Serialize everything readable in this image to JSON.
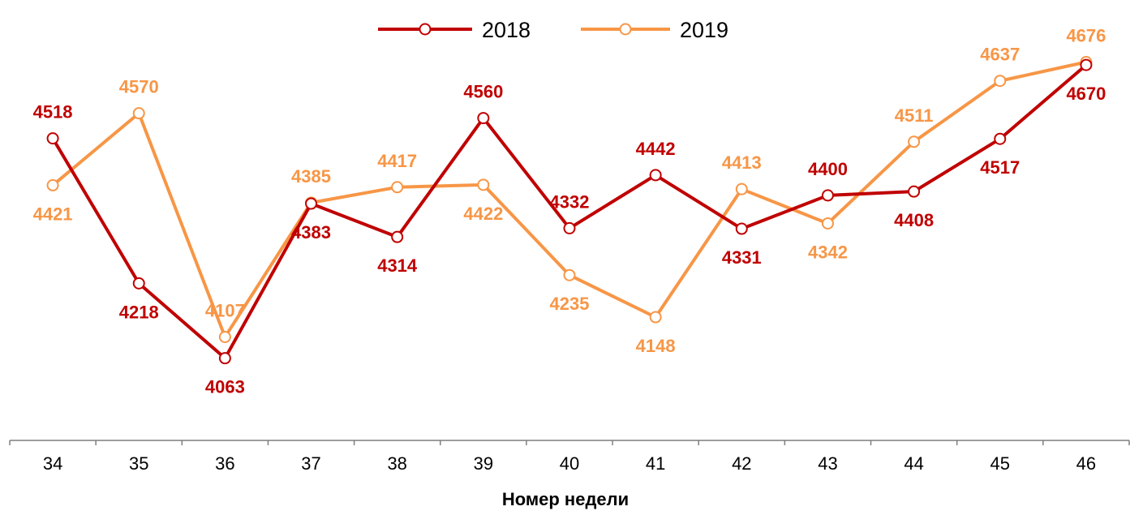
{
  "chart_data": {
    "type": "line",
    "title": "",
    "xlabel": "Номер недели",
    "ylabel": "",
    "categories": [
      "34",
      "35",
      "36",
      "37",
      "38",
      "39",
      "40",
      "41",
      "42",
      "43",
      "44",
      "45",
      "46"
    ],
    "ylim": [
      3900,
      4730
    ],
    "grid": false,
    "legend": "top-center",
    "series": [
      {
        "name": "2018",
        "color": "#C00000",
        "values": [
          4518,
          4218,
          4063,
          4383,
          4314,
          4560,
          4332,
          4442,
          4331,
          4400,
          4408,
          4517,
          4670
        ],
        "label_positions": [
          "above",
          "below",
          "below",
          "below",
          "below",
          "above",
          "above",
          "above",
          "below",
          "above",
          "below",
          "below",
          "below"
        ]
      },
      {
        "name": "2019",
        "color": "#F79646",
        "values": [
          4421,
          4570,
          4107,
          4385,
          4417,
          4422,
          4235,
          4148,
          4413,
          4342,
          4511,
          4637,
          4676
        ],
        "label_positions": [
          "below",
          "above",
          "above",
          "above",
          "above",
          "below",
          "below",
          "below",
          "above",
          "below",
          "above",
          "above",
          "above"
        ]
      }
    ]
  }
}
